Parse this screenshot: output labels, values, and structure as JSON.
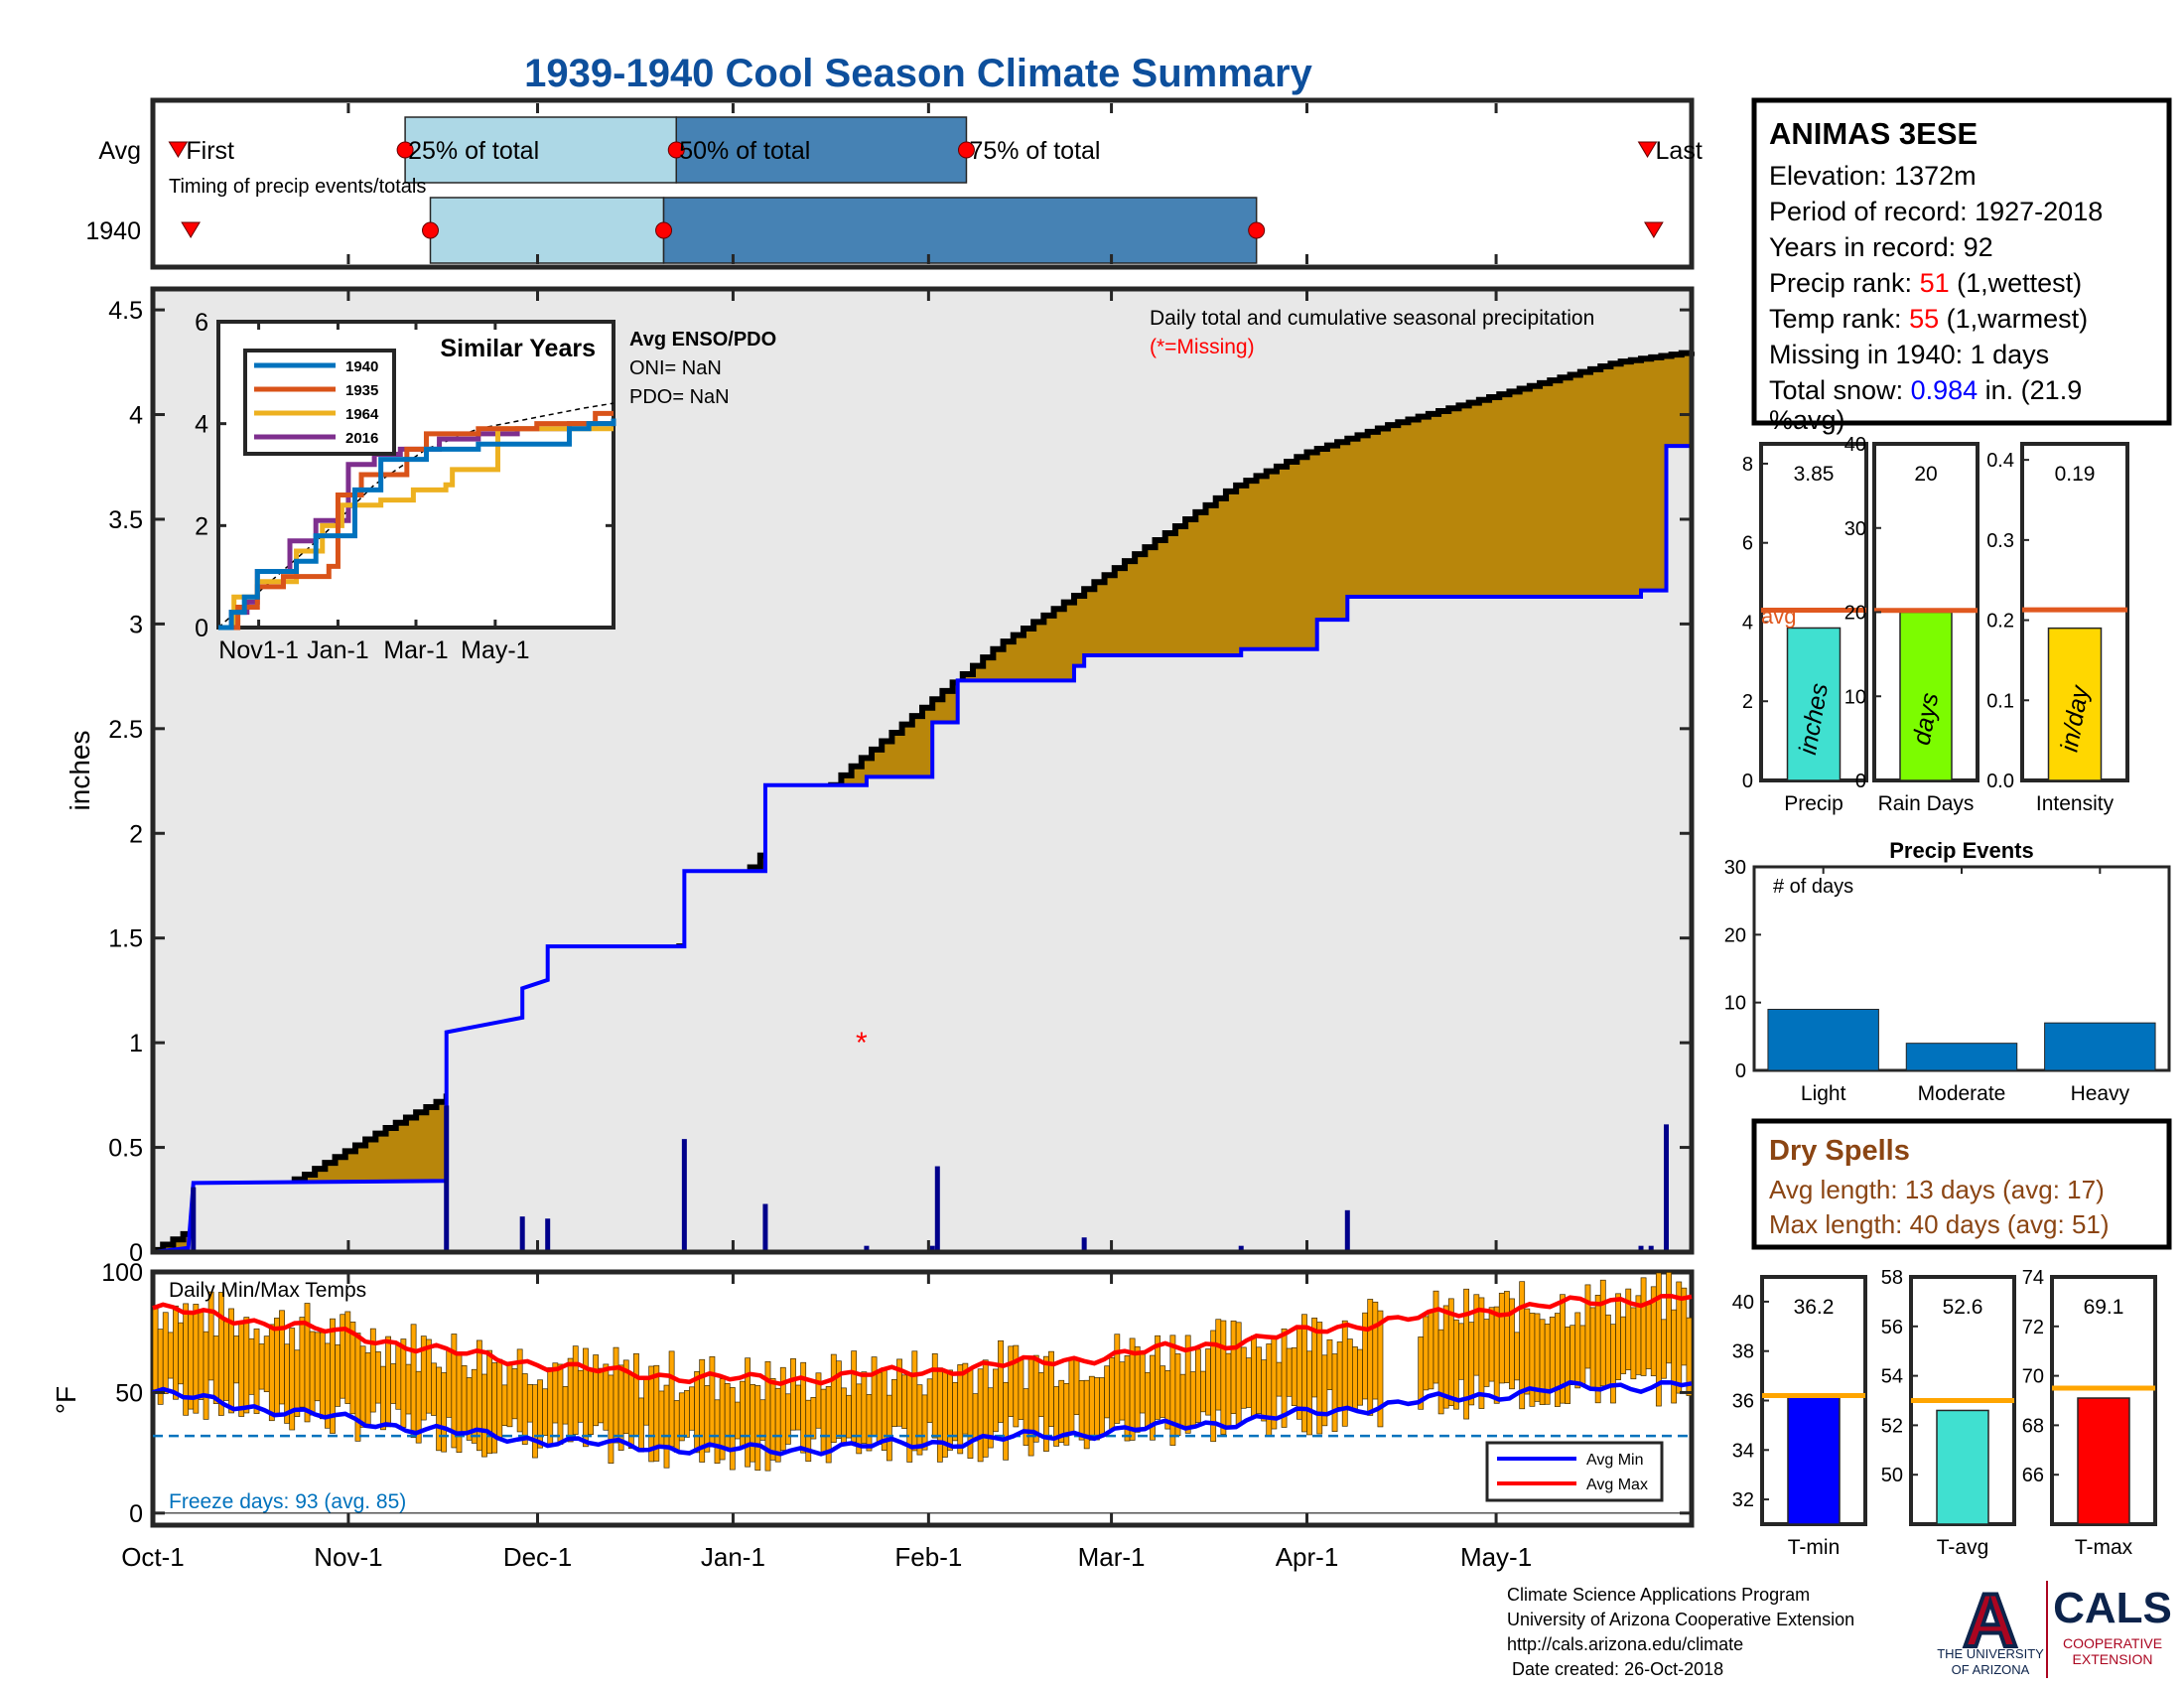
{
  "title": "1939-1940 Cool Season Climate Summary",
  "colors": {
    "title": "#0d4f9c",
    "cum_fill": "#b8860b",
    "avg_line": "#0000ff",
    "bar_light": "#add8e6",
    "bar_dark": "#4682b4",
    "marker": "#ff0000",
    "temp_bar": "#ffa500",
    "avg_max": "#ff0000",
    "avg_min": "#0000ff",
    "rank": "#ff0000",
    "snow": "#0000ff",
    "dry": "#8b4513",
    "freeze": "#0072bd",
    "precip_bar": "#40e0d0",
    "raindays_bar": "#7cfc00",
    "intensity_bar": "#ffd700",
    "events_bar": "#0072bd",
    "tmin_bar": "#0000ff",
    "tavg_bar": "#40e0d0",
    "tmax_bar": "#ff0000",
    "avg_ref_precip": "#e0581f",
    "avg_ref_temp": "#ffa500"
  },
  "station": {
    "name": "ANIMAS 3ESE",
    "elevation": "Elevation: 1372m",
    "period": "Period of record: 1927-2018",
    "years": "Years in record: 92",
    "precip_rank_label": "Precip rank: ",
    "precip_rank_value": "51",
    "precip_rank_suffix": " (1,wettest)",
    "temp_rank_label": "Temp rank: ",
    "temp_rank_value": "55",
    "temp_rank_suffix": " (1,warmest)",
    "missing": "Missing in 1940: 1 days",
    "snow_label": "Total snow: ",
    "snow_value": "0.984",
    "snow_suffix": " in. (21.9",
    "snow_line2": "%avg)"
  },
  "chart_data": [
    {
      "id": "timing",
      "type": "bar",
      "title": "",
      "caption": "Timing of precip events/totals",
      "rows": [
        "Avg",
        "1940"
      ],
      "avg_labels": [
        "First",
        "25% of total",
        "50% of total",
        "75% of total",
        "Last"
      ],
      "avg": {
        "first": "1939-10-05",
        "p25": "1939-11-10",
        "p50": "1939-12-23",
        "p75": "1940-02-07",
        "last": "1940-05-25"
      },
      "y1940": {
        "first": "1939-10-07",
        "p25": "1939-11-14",
        "p50": "1939-12-21",
        "p75": "1940-03-24",
        "last": "1940-05-26"
      }
    },
    {
      "id": "cumulative",
      "type": "area",
      "annotation": "Daily total and cumulative seasonal precipitation",
      "missing_note": "(*=Missing)",
      "ylabel": "inches",
      "ylim": [
        0,
        4.6
      ],
      "yticks": [
        0,
        0.5,
        1,
        1.5,
        2,
        2.5,
        3,
        3.5,
        4,
        4.5
      ],
      "x_months": [
        "Oct-1",
        "Nov-1",
        "Dec-1",
        "Jan-1",
        "Feb-1",
        "Mar-1",
        "Apr-1",
        "May-1"
      ],
      "x_range": [
        "1939-10-01",
        "1940-05-31"
      ],
      "avg_cumulative": [
        [
          0,
          0.01
        ],
        [
          15,
          0.2
        ],
        [
          30,
          0.37
        ],
        [
          45,
          0.58
        ],
        [
          61,
          0.78
        ],
        [
          76,
          0.97
        ],
        [
          91,
          1.2
        ],
        [
          106,
          1.5
        ],
        [
          122,
          1.95
        ],
        [
          137,
          2.3
        ],
        [
          152,
          2.6
        ],
        [
          167,
          2.9
        ],
        [
          183,
          3.15
        ],
        [
          198,
          3.4
        ],
        [
          213,
          3.65
        ],
        [
          228,
          3.82
        ],
        [
          244,
          3.95
        ],
        [
          259,
          4.05
        ],
        [
          274,
          4.15
        ],
        [
          289,
          4.25
        ],
        [
          304,
          4.3
        ]
      ],
      "year_cumulative": [
        [
          0,
          0.0
        ],
        [
          7,
          0.02
        ],
        [
          8,
          0.33
        ],
        [
          58,
          0.34
        ],
        [
          58,
          1.05
        ],
        [
          73,
          1.12
        ],
        [
          73,
          1.26
        ],
        [
          78,
          1.3
        ],
        [
          78,
          1.46
        ],
        [
          105,
          1.46
        ],
        [
          105,
          1.82
        ],
        [
          121,
          1.82
        ],
        [
          121,
          2.23
        ],
        [
          141,
          2.23
        ],
        [
          141,
          2.27
        ],
        [
          154,
          2.27
        ],
        [
          154,
          2.53
        ],
        [
          159,
          2.53
        ],
        [
          159,
          2.73
        ],
        [
          182,
          2.73
        ],
        [
          182,
          2.8
        ],
        [
          184,
          2.8
        ],
        [
          184,
          2.85
        ],
        [
          215,
          2.85
        ],
        [
          215,
          2.88
        ],
        [
          230,
          2.88
        ],
        [
          230,
          3.02
        ],
        [
          236,
          3.02
        ],
        [
          236,
          3.13
        ],
        [
          294,
          3.13
        ],
        [
          294,
          3.16
        ],
        [
          299,
          3.16
        ],
        [
          299,
          3.85
        ],
        [
          304,
          3.85
        ]
      ],
      "daily_precip": [
        [
          8,
          0.31
        ],
        [
          58,
          0.7
        ],
        [
          73,
          0.17
        ],
        [
          78,
          0.16
        ],
        [
          105,
          0.54
        ],
        [
          121,
          0.23
        ],
        [
          141,
          0.03
        ],
        [
          154,
          0.03
        ],
        [
          155,
          0.41
        ],
        [
          184,
          0.07
        ],
        [
          215,
          0.03
        ],
        [
          236,
          0.2
        ],
        [
          294,
          0.03
        ],
        [
          296,
          0.03
        ],
        [
          299,
          0.61
        ]
      ],
      "missing_days": [
        [
          140,
          1.0
        ]
      ]
    },
    {
      "id": "similar_years",
      "type": "line",
      "title": "Similar Years",
      "ylim": [
        0,
        6
      ],
      "yticks": [
        0,
        2,
        4,
        6
      ],
      "x_ticks": [
        "Nov1-1",
        "Jan-1",
        "Mar-1",
        "May-1"
      ],
      "series": [
        {
          "name": "1940",
          "color": "#0072bd",
          "values": [
            [
              0,
              0
            ],
            [
              10,
              0.3
            ],
            [
              20,
              0.6
            ],
            [
              30,
              1.1
            ],
            [
              60,
              1.3
            ],
            [
              75,
              1.8
            ],
            [
              105,
              2.7
            ],
            [
              125,
              3.3
            ],
            [
              160,
              3.5
            ],
            [
              200,
              3.6
            ],
            [
              265,
              3.6
            ],
            [
              270,
              3.9
            ],
            [
              285,
              4.0
            ],
            [
              304,
              4.1
            ]
          ]
        },
        {
          "name": "1935",
          "color": "#d95319",
          "values": [
            [
              0,
              0
            ],
            [
              15,
              0.4
            ],
            [
              30,
              0.8
            ],
            [
              50,
              1.0
            ],
            [
              70,
              1.0
            ],
            [
              85,
              1.2
            ],
            [
              92,
              2.6
            ],
            [
              110,
              3.0
            ],
            [
              145,
              3.5
            ],
            [
              160,
              3.8
            ],
            [
              200,
              3.9
            ],
            [
              245,
              4.0
            ],
            [
              290,
              4.2
            ],
            [
              304,
              4.2
            ]
          ]
        },
        {
          "name": "1964",
          "color": "#edb120",
          "values": [
            [
              0,
              0
            ],
            [
              12,
              0.6
            ],
            [
              30,
              0.9
            ],
            [
              60,
              1.5
            ],
            [
              80,
              2.0
            ],
            [
              95,
              2.4
            ],
            [
              125,
              2.5
            ],
            [
              150,
              2.7
            ],
            [
              175,
              2.8
            ],
            [
              180,
              3.1
            ],
            [
              210,
              3.1
            ],
            [
              215,
              3.9
            ],
            [
              265,
              3.9
            ],
            [
              270,
              3.9
            ],
            [
              304,
              3.9
            ]
          ]
        },
        {
          "name": "2016",
          "color": "#7e2f8e",
          "values": [
            [
              0,
              0
            ],
            [
              10,
              0.3
            ],
            [
              22,
              0.5
            ],
            [
              30,
              1.1
            ],
            [
              55,
              1.7
            ],
            [
              75,
              2.1
            ],
            [
              100,
              3.2
            ],
            [
              120,
              3.4
            ],
            [
              140,
              3.5
            ],
            [
              170,
              3.7
            ],
            [
              200,
              3.8
            ],
            [
              230,
              3.9
            ],
            [
              270,
              4.0
            ],
            [
              304,
              4.0
            ]
          ]
        }
      ],
      "avg_dashed": [
        [
          0,
          0
        ],
        [
          40,
          0.9
        ],
        [
          80,
          1.8
        ],
        [
          120,
          2.8
        ],
        [
          160,
          3.5
        ],
        [
          200,
          3.9
        ],
        [
          240,
          4.1
        ],
        [
          280,
          4.3
        ],
        [
          304,
          4.4
        ]
      ],
      "enso_title": "Avg ENSO/PDO",
      "oni": "ONI= NaN",
      "pdo": "PDO= NaN"
    },
    {
      "id": "temps",
      "type": "bar",
      "title": "Daily Min/Max Temps",
      "ylabel": "°F",
      "ylim": [
        -5,
        100
      ],
      "yticks": [
        0,
        50,
        100
      ],
      "freeze_line": 32,
      "freeze_text": "Freeze days: 93 (avg. 85)",
      "legend": [
        "Avg Min",
        "Avg Max"
      ],
      "avg_max": [
        [
          0,
          85
        ],
        [
          30,
          77
        ],
        [
          61,
          66
        ],
        [
          92,
          58
        ],
        [
          122,
          55
        ],
        [
          153,
          59
        ],
        [
          183,
          64
        ],
        [
          214,
          71
        ],
        [
          244,
          80
        ],
        [
          274,
          86
        ],
        [
          304,
          90
        ]
      ],
      "avg_min": [
        [
          0,
          50
        ],
        [
          30,
          41
        ],
        [
          61,
          33
        ],
        [
          92,
          28
        ],
        [
          122,
          26
        ],
        [
          153,
          29
        ],
        [
          183,
          33
        ],
        [
          214,
          38
        ],
        [
          244,
          45
        ],
        [
          274,
          51
        ],
        [
          304,
          54
        ]
      ]
    },
    {
      "id": "precip_small",
      "type": "bar",
      "panels": [
        {
          "label": "Precip",
          "unit": "inches",
          "value": 3.85,
          "value_text": "3.85",
          "avg": 4.3,
          "ylim": [
            0,
            8.5
          ],
          "yticks": [
            0,
            2,
            4,
            6,
            8
          ],
          "avg_text": "avg"
        },
        {
          "label": "Rain Days",
          "unit": "days",
          "value": 20,
          "value_text": "20",
          "avg": 20.2,
          "ylim": [
            0,
            40
          ],
          "yticks": [
            0,
            10,
            20,
            30,
            40
          ]
        },
        {
          "label": "Intensity",
          "unit": "in/day",
          "value": 0.19,
          "value_text": "0.19",
          "avg": 0.213,
          "ylim": [
            0,
            0.42
          ],
          "yticks": [
            0,
            0.1,
            0.2,
            0.3,
            0.4
          ]
        }
      ]
    },
    {
      "id": "precip_events",
      "type": "bar",
      "title": "Precip Events",
      "ylabel": "# of days",
      "categories": [
        "Light",
        "Moderate",
        "Heavy"
      ],
      "values": [
        9,
        4,
        7
      ],
      "ylim": [
        0,
        30
      ],
      "yticks": [
        0,
        10,
        20,
        30
      ]
    },
    {
      "id": "temp_small",
      "type": "bar",
      "panels": [
        {
          "label": "T-min",
          "value": 36.2,
          "value_text": "36.2",
          "avg": 36.2,
          "ylim": [
            31,
            41
          ],
          "yticks": [
            32,
            34,
            36,
            38,
            40
          ]
        },
        {
          "label": "T-avg",
          "value": 52.6,
          "value_text": "52.6",
          "avg": 53.0,
          "ylim": [
            48,
            58
          ],
          "yticks": [
            50,
            52,
            54,
            56,
            58
          ]
        },
        {
          "label": "T-max",
          "value": 69.1,
          "value_text": "69.1",
          "avg": 69.5,
          "ylim": [
            64,
            74
          ],
          "yticks": [
            66,
            68,
            70,
            72,
            74
          ]
        }
      ]
    }
  ],
  "dry_spells": {
    "title": "Dry Spells",
    "avg": "Avg length: 13 days (avg: 17)",
    "max": "Max length: 40 days (avg: 51)"
  },
  "footer": {
    "line1": "Climate Science Applications Program",
    "line2": "University of Arizona Cooperative Extension",
    "line3": "http://cals.arizona.edu/climate",
    "line4": " Date created: 26-Oct-2018"
  },
  "logo": {
    "ua_letter": "A",
    "ua_line1": "THE UNIVERSITY",
    "ua_line2": "OF ARIZONA",
    "cals": "CALS",
    "cals_line1": "COOPERATIVE",
    "cals_line2": "EXTENSION"
  }
}
